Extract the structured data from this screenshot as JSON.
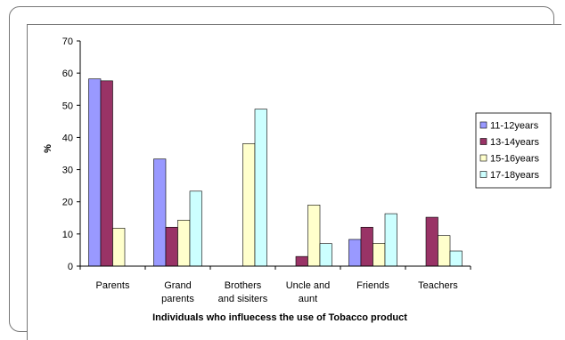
{
  "chart_data": {
    "type": "bar",
    "title": "",
    "xlabel": "Individuals who influecess the use of Tobacco product",
    "ylabel": "%",
    "ylim": [
      0,
      70
    ],
    "yticks": [
      0,
      10,
      20,
      30,
      40,
      50,
      60,
      70
    ],
    "grid": false,
    "legend_position": "right",
    "categories": [
      [
        "Parents"
      ],
      [
        "Grand",
        "parents"
      ],
      [
        "Brothers",
        "and sisiters"
      ],
      [
        "Uncle and",
        "aunt"
      ],
      [
        "Friends"
      ],
      [
        "Teachers"
      ]
    ],
    "series": [
      {
        "name": "11-12years",
        "color": "#9999ff",
        "values": [
          58.2,
          33.3,
          0,
          0,
          8.3,
          0
        ]
      },
      {
        "name": "13-14years",
        "color": "#993366",
        "values": [
          57.6,
          12.1,
          0,
          3.0,
          12.1,
          15.2
        ]
      },
      {
        "name": "15-16years",
        "color": "#ffffcc",
        "values": [
          11.8,
          14.3,
          38.1,
          19.0,
          7.1,
          9.5
        ]
      },
      {
        "name": "17-18years",
        "color": "#ccffff",
        "values": [
          0,
          23.3,
          48.8,
          7.0,
          16.3,
          4.7
        ]
      }
    ]
  }
}
